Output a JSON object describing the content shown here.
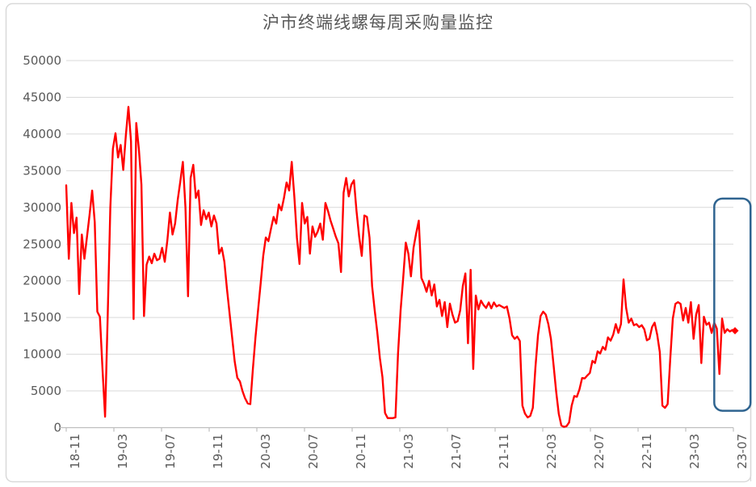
{
  "title": "沪市终端线螺每周采购量监控",
  "colors": {
    "line": "#FF0000",
    "highlight_box": "#2F6490",
    "text": "#595959",
    "gridline": "#D9D9D9",
    "axis_line": "#BFBFBF",
    "frame": "#D9D9D9"
  },
  "chart_data": {
    "type": "line",
    "title": "沪市终端线螺每周采购量监控",
    "xlabel": "",
    "ylabel": "",
    "ylim": [
      0,
      50000
    ],
    "grid": true,
    "legend": "none",
    "y_ticks": [
      0,
      5000,
      10000,
      15000,
      20000,
      25000,
      30000,
      35000,
      40000,
      45000,
      50000
    ],
    "x_tick_labels": [
      "18-11",
      "19-03",
      "19-07",
      "19-11",
      "20-03",
      "20-07",
      "20-11",
      "21-03",
      "21-07",
      "21-11",
      "22-03",
      "22-07",
      "22-11",
      "23-03",
      "23-07"
    ],
    "end_marker": true,
    "highlight_box": {
      "from_index": 250,
      "to_index": 264,
      "y_from": 2300,
      "y_to": 31200
    },
    "values": [
      33000,
      23000,
      30600,
      26500,
      28600,
      18200,
      26300,
      23000,
      26000,
      29000,
      32300,
      28000,
      15800,
      15100,
      8000,
      1500,
      15000,
      30000,
      38000,
      40100,
      36800,
      38500,
      35100,
      39800,
      43700,
      39000,
      14800,
      41500,
      38000,
      33100,
      15200,
      22200,
      23300,
      22400,
      23700,
      22800,
      23000,
      24500,
      22600,
      25500,
      29300,
      26300,
      27800,
      31000,
      33500,
      36200,
      30000,
      17900,
      34000,
      35800,
      31300,
      32300,
      27600,
      29600,
      28400,
      29300,
      27400,
      28900,
      27800,
      23700,
      24500,
      22600,
      18900,
      15600,
      12300,
      9000,
      6800,
      6300,
      5000,
      4000,
      3300,
      3200,
      8000,
      12300,
      16000,
      19600,
      23400,
      25900,
      25400,
      27100,
      28700,
      27800,
      30400,
      29600,
      31300,
      33400,
      32300,
      36200,
      31500,
      25900,
      22300,
      30600,
      27800,
      28700,
      23700,
      27400,
      26000,
      26700,
      27800,
      25600,
      30600,
      29500,
      28200,
      27100,
      26000,
      25100,
      21200,
      32000,
      34000,
      31500,
      33100,
      33700,
      29500,
      26000,
      23400,
      28900,
      28700,
      25900,
      19300,
      16000,
      13000,
      9500,
      6900,
      2000,
      1300,
      1300,
      1300,
      1400,
      10100,
      16000,
      20400,
      25200,
      23700,
      20600,
      24500,
      26500,
      28200,
      20400,
      19600,
      18500,
      20000,
      18000,
      19500,
      16500,
      17400,
      15200,
      17100,
      13700,
      16900,
      15400,
      14300,
      14500,
      16000,
      19300,
      21000,
      11500,
      21500,
      8000,
      18000,
      16100,
      17300,
      16700,
      16300,
      17050,
      16250,
      17050,
      16500,
      16700,
      16500,
      16300,
      16500,
      14900,
      12600,
      12100,
      12400,
      11800,
      3000,
      1900,
      1400,
      1600,
      2700,
      8200,
      12600,
      15200,
      15800,
      15400,
      14100,
      12100,
      8600,
      4900,
      1900,
      300,
      100,
      200,
      700,
      3000,
      4300,
      4200,
      5200,
      6750,
      6700,
      7100,
      7450,
      9100,
      8800,
      10400,
      10100,
      11000,
      10600,
      12300,
      11850,
      12650,
      14100,
      12900,
      14100,
      20200,
      16300,
      14300,
      14850,
      13950,
      14100,
      13700,
      13950,
      13400,
      11900,
      12100,
      13700,
      14300,
      12650,
      10300,
      3000,
      2700,
      3200,
      9300,
      14850,
      16850,
      17100,
      16850,
      14600,
      16300,
      14300,
      17100,
      12100,
      15400,
      16700,
      8800,
      15100,
      14000,
      14300,
      12900,
      14300,
      13500,
      7300,
      14850,
      12900,
      13400,
      13100,
      13300,
      13200
    ]
  }
}
